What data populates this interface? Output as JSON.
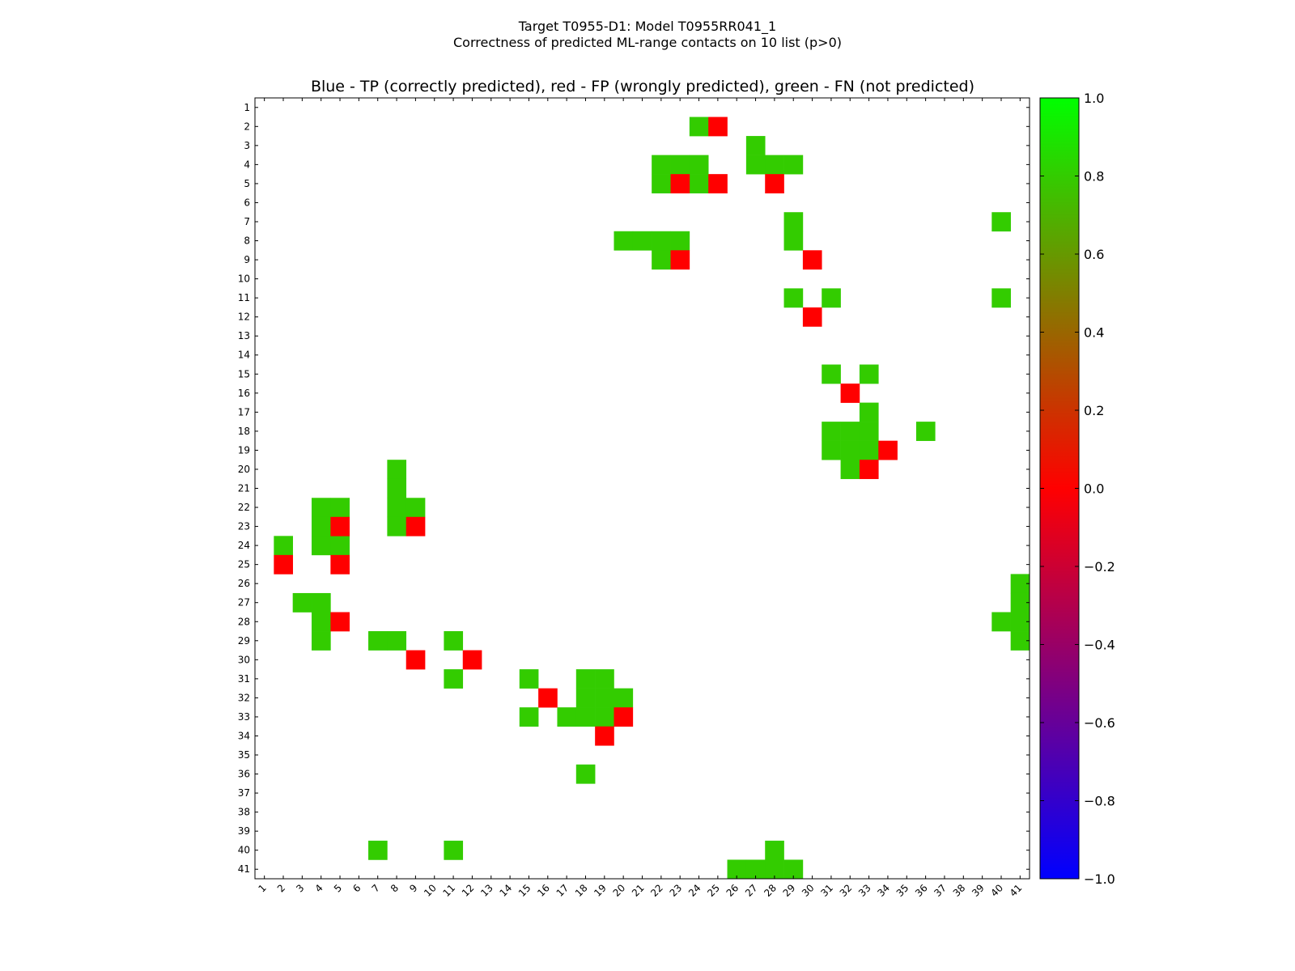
{
  "chart_data": {
    "type": "heatmap",
    "title_line1": "Target T0955-D1: Model T0955RR041_1",
    "title_line2": "Correctness of predicted ML-range contacts on 10 list (p>0)",
    "subtitle": "Blue - TP (correctly predicted), red - FP (wrongly predicted), green - FN (not predicted)",
    "n": 41,
    "x_range": [
      1,
      41
    ],
    "y_range": [
      1,
      41
    ],
    "legend_position": "right colorbar",
    "colorbar": {
      "min": -1.0,
      "max": 1.0,
      "ticks": [
        "1.0",
        "0.8",
        "0.6",
        "0.4",
        "0.2",
        "0.0",
        "−0.2",
        "−0.4",
        "−0.6",
        "−0.8",
        "−1.0"
      ],
      "tick_values": [
        1.0,
        0.8,
        0.6,
        0.4,
        0.2,
        0.0,
        -0.2,
        -0.4,
        -0.6,
        -0.8,
        -1.0
      ]
    },
    "colors": {
      "fn": "#33cc00",
      "fp": "#ff0000",
      "tp": "#0000ff"
    },
    "cells_fn_value": 0.8,
    "cells_fp_value": 0.0,
    "fn_cells": [
      [
        2,
        24
      ],
      [
        3,
        27
      ],
      [
        4,
        22
      ],
      [
        4,
        23
      ],
      [
        4,
        24
      ],
      [
        4,
        27
      ],
      [
        4,
        28
      ],
      [
        4,
        29
      ],
      [
        5,
        22
      ],
      [
        5,
        24
      ],
      [
        7,
        29
      ],
      [
        7,
        40
      ],
      [
        8,
        20
      ],
      [
        8,
        21
      ],
      [
        8,
        22
      ],
      [
        8,
        23
      ],
      [
        8,
        29
      ],
      [
        9,
        22
      ],
      [
        11,
        29
      ],
      [
        11,
        31
      ],
      [
        11,
        40
      ],
      [
        15,
        31
      ],
      [
        15,
        33
      ],
      [
        17,
        33
      ],
      [
        18,
        31
      ],
      [
        18,
        32
      ],
      [
        18,
        33
      ],
      [
        18,
        36
      ],
      [
        19,
        31
      ],
      [
        19,
        32
      ],
      [
        19,
        33
      ],
      [
        20,
        32
      ],
      [
        20,
        8
      ],
      [
        21,
        8
      ],
      [
        22,
        4
      ],
      [
        22,
        5
      ],
      [
        22,
        8
      ],
      [
        22,
        9
      ],
      [
        23,
        4
      ],
      [
        23,
        8
      ],
      [
        24,
        2
      ],
      [
        24,
        4
      ],
      [
        24,
        5
      ],
      [
        26,
        41
      ],
      [
        27,
        3
      ],
      [
        27,
        4
      ],
      [
        27,
        41
      ],
      [
        28,
        4
      ],
      [
        28,
        40
      ],
      [
        28,
        41
      ],
      [
        29,
        4
      ],
      [
        29,
        7
      ],
      [
        29,
        8
      ],
      [
        29,
        11
      ],
      [
        29,
        41
      ],
      [
        31,
        11
      ],
      [
        31,
        15
      ],
      [
        31,
        18
      ],
      [
        31,
        19
      ],
      [
        32,
        18
      ],
      [
        32,
        19
      ],
      [
        32,
        20
      ],
      [
        33,
        15
      ],
      [
        33,
        17
      ],
      [
        33,
        18
      ],
      [
        33,
        19
      ],
      [
        36,
        18
      ],
      [
        40,
        7
      ],
      [
        40,
        11
      ],
      [
        40,
        28
      ],
      [
        41,
        26
      ],
      [
        41,
        27
      ],
      [
        41,
        28
      ],
      [
        41,
        29
      ]
    ],
    "fp_cells": [
      [
        2,
        25
      ],
      [
        5,
        23
      ],
      [
        5,
        25
      ],
      [
        5,
        28
      ],
      [
        9,
        23
      ],
      [
        9,
        30
      ],
      [
        12,
        30
      ],
      [
        16,
        32
      ],
      [
        19,
        34
      ],
      [
        20,
        33
      ],
      [
        23,
        5
      ],
      [
        23,
        9
      ],
      [
        25,
        2
      ],
      [
        25,
        5
      ],
      [
        28,
        5
      ],
      [
        30,
        9
      ],
      [
        30,
        12
      ],
      [
        32,
        16
      ],
      [
        33,
        20
      ],
      [
        34,
        19
      ]
    ],
    "tp_cells": []
  }
}
